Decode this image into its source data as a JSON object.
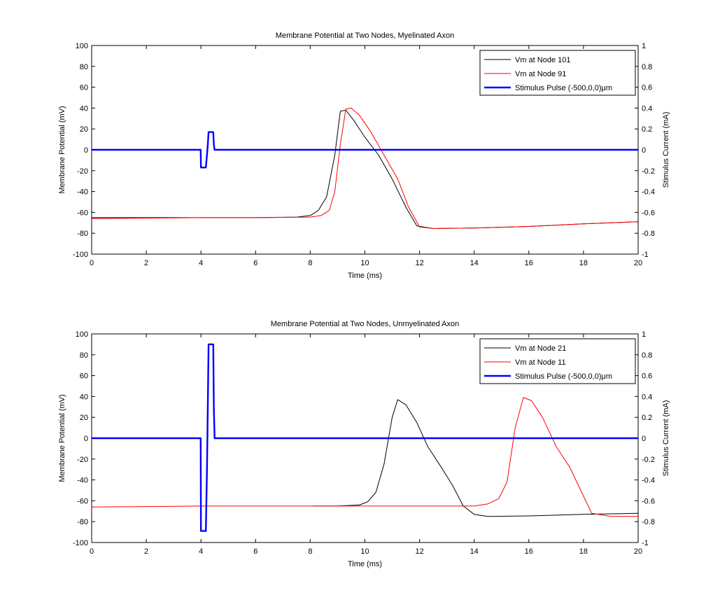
{
  "chart_data": [
    {
      "type": "line",
      "title": "Membrane Potential at Two Nodes, Myelinated Axon",
      "xlabel": "Time (ms)",
      "ylabel": "Membrane Potential (mV)",
      "y2label": "Stimulus Current (mA)",
      "xlim": [
        0,
        20
      ],
      "ylim": [
        -100,
        100
      ],
      "y2lim": [
        -1,
        1
      ],
      "xticks": [
        "0",
        "2",
        "4",
        "6",
        "8",
        "10",
        "12",
        "14",
        "16",
        "18",
        "20"
      ],
      "yticks": [
        "-100",
        "-80",
        "-60",
        "-40",
        "-20",
        "0",
        "20",
        "40",
        "60",
        "80",
        "100"
      ],
      "y2ticks": [
        "-1",
        "-0.8",
        "-0.6",
        "-0.4",
        "-0.2",
        "0",
        "0.2",
        "0.4",
        "0.6",
        "0.8",
        "1"
      ],
      "grid": false,
      "legend_position": "top-right",
      "series": [
        {
          "name": "Vm at Node 101",
          "color": "#000000",
          "axis": "left",
          "x": [
            0,
            2,
            4,
            6,
            7.5,
            8.0,
            8.3,
            8.6,
            8.9,
            9.1,
            9.3,
            9.6,
            10.0,
            10.5,
            11.0,
            11.5,
            11.9,
            12.5,
            14,
            16,
            18,
            20
          ],
          "y": [
            -65,
            -65,
            -65,
            -65,
            -64.5,
            -63,
            -58,
            -45,
            -5,
            37,
            38,
            28,
            12,
            -5,
            -28,
            -55,
            -73,
            -75.5,
            -75,
            -73.5,
            -71,
            -69
          ]
        },
        {
          "name": "Vm at Node 91",
          "color": "#ff0000",
          "axis": "left",
          "x": [
            0,
            2,
            4,
            6,
            8.0,
            8.4,
            8.7,
            8.9,
            9.1,
            9.3,
            9.5,
            9.8,
            10.2,
            10.7,
            11.2,
            11.6,
            12.0,
            12.5,
            14,
            16,
            18,
            20
          ],
          "y": [
            -66,
            -65.5,
            -65,
            -65,
            -64.5,
            -63,
            -58,
            -40,
            5,
            39,
            40,
            33,
            18,
            -5,
            -28,
            -55,
            -74,
            -75.5,
            -75,
            -73.5,
            -71,
            -69
          ]
        },
        {
          "name": "Stimulus Pulse (-500,0,0)μm",
          "color": "#0000ff",
          "axis": "right",
          "x": [
            0,
            3.99,
            4.0,
            4.18,
            4.22,
            4.25,
            4.28,
            4.3,
            4.45,
            4.47,
            4.5,
            20
          ],
          "y": [
            0,
            0,
            -0.17,
            -0.17,
            -0.05,
            0.05,
            0.17,
            0.17,
            0.17,
            0.05,
            0,
            0
          ]
        }
      ]
    },
    {
      "type": "line",
      "title": "Membrane Potential at Two Nodes, Unmyelinated Axon",
      "xlabel": "Time (ms)",
      "ylabel": "Membrane Potential (mV)",
      "y2label": "Stimulus Current (mA)",
      "xlim": [
        0,
        20
      ],
      "ylim": [
        -100,
        100
      ],
      "y2lim": [
        -1,
        1
      ],
      "xticks": [
        "0",
        "2",
        "4",
        "6",
        "8",
        "10",
        "12",
        "14",
        "16",
        "18",
        "20"
      ],
      "yticks": [
        "-100",
        "-80",
        "-60",
        "-40",
        "-20",
        "0",
        "20",
        "40",
        "60",
        "80",
        "100"
      ],
      "y2ticks": [
        "-1",
        "-0.8",
        "-0.6",
        "-0.4",
        "-0.2",
        "0",
        "0.2",
        "0.4",
        "0.6",
        "0.8",
        "1"
      ],
      "grid": false,
      "legend_position": "top-right",
      "series": [
        {
          "name": "Vm at Node 21",
          "color": "#000000",
          "axis": "left",
          "x": [
            8.1,
            9,
            9.8,
            10.1,
            10.4,
            10.7,
            11.0,
            11.2,
            11.5,
            11.9,
            12.3,
            12.8,
            13.2,
            13.6,
            14.0,
            14.5,
            16,
            18,
            20
          ],
          "y": [
            -65,
            -65,
            -64,
            -61,
            -52,
            -25,
            20,
            37,
            32,
            15,
            -8,
            -28,
            -45,
            -65,
            -73,
            -75,
            -74.5,
            -73,
            -72
          ]
        },
        {
          "name": "Vm at Node 11",
          "color": "#ff0000",
          "axis": "left",
          "x": [
            0,
            2,
            4,
            6,
            8,
            10,
            12,
            14,
            14.5,
            14.9,
            15.2,
            15.5,
            15.8,
            16.1,
            16.5,
            17.0,
            17.5,
            17.9,
            18.3,
            19,
            20
          ],
          "y": [
            -66,
            -65.5,
            -65,
            -65,
            -65,
            -65,
            -65,
            -65,
            -63,
            -58,
            -42,
            10,
            39,
            36,
            20,
            -8,
            -28,
            -50,
            -72,
            -75,
            -75
          ]
        },
        {
          "name": "Stimulus Pulse (-500,0,0)μm",
          "color": "#0000ff",
          "axis": "right",
          "x": [
            0,
            3.99,
            4.0,
            4.18,
            4.22,
            4.25,
            4.28,
            4.3,
            4.45,
            4.47,
            4.5,
            20
          ],
          "y": [
            0,
            0,
            -0.89,
            -0.89,
            -0.3,
            0.3,
            0.9,
            0.9,
            0.9,
            0.3,
            0,
            0
          ]
        }
      ]
    }
  ]
}
